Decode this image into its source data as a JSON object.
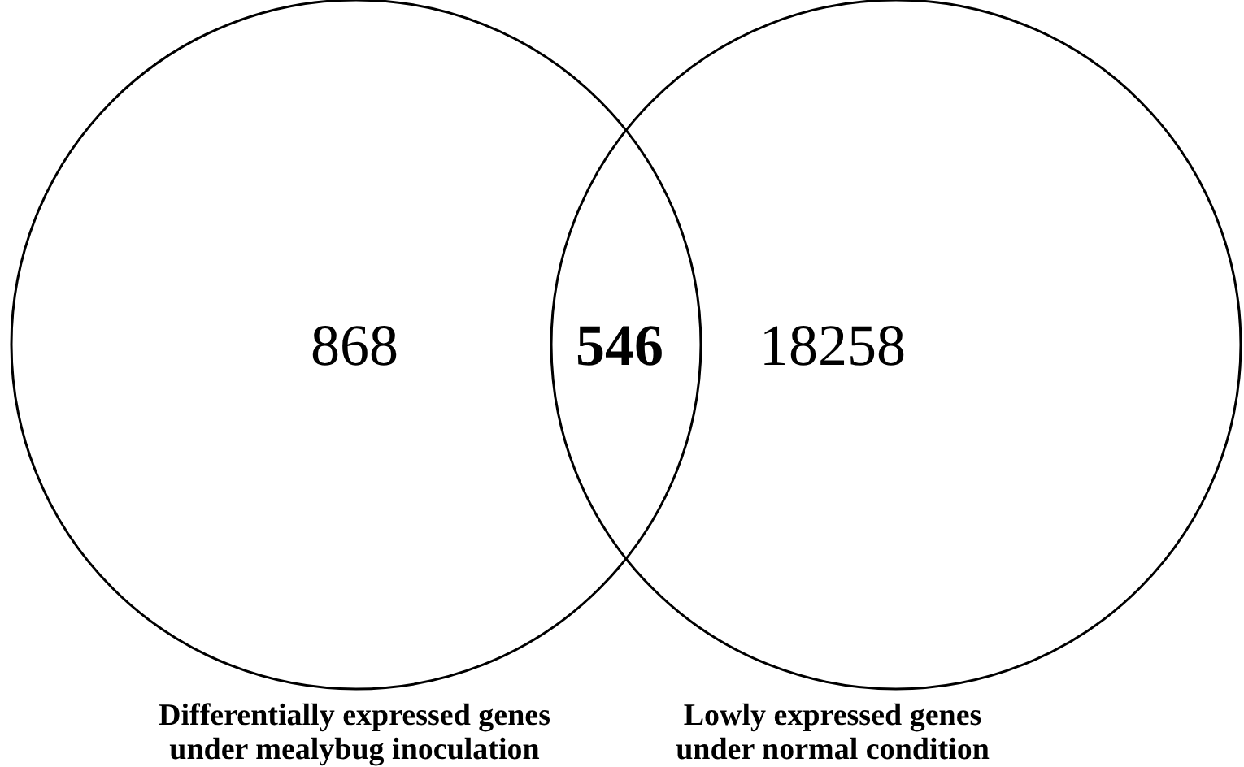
{
  "chart_data": {
    "type": "other",
    "categories": [
      null,
      null,
      null
    ],
    "values": [
      868,
      546,
      18258
    ],
    "data_labels": true,
    "color": "#000000",
    "annotations": [
      "Differentially expressed genes under mealybug inoculation",
      "Lowly expressed genes under normal condition"
    ]
  }
}
